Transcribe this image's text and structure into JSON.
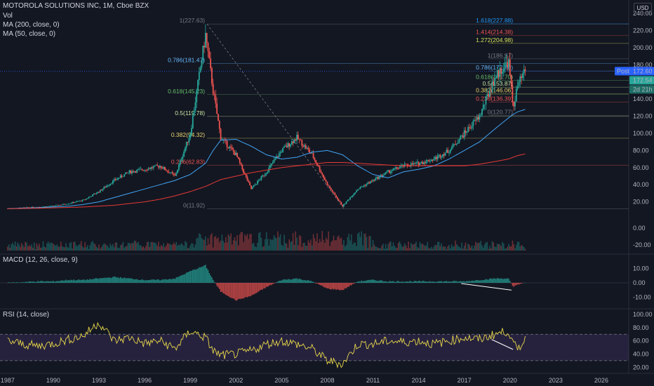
{
  "header": {
    "symbol": "MOTOROLA SOLUTIONS INC, 1M, Cboe BZX",
    "vol": "Vol",
    "ma200": "MA (200, close, 0)",
    "ma50": "MA (50, close, 0)",
    "currency": "USD"
  },
  "price_axis": {
    "ticks": [
      "240.00",
      "220.00",
      "200.00",
      "180.00",
      "160.00",
      "140.00",
      "120.00",
      "100.00",
      "80.00",
      "60.00",
      "40.00",
      "20.00"
    ],
    "volume_ticks": [
      "0.00",
      "-20.00"
    ],
    "macd_ticks": [
      "10.00",
      "0.00",
      "-10.00"
    ],
    "rsi_ticks": [
      "100.00",
      "80.00",
      "60.00",
      "40.00",
      "20.00"
    ]
  },
  "time_axis": [
    "1987",
    "1990",
    "1993",
    "1996",
    "1999",
    "2002",
    "2005",
    "2008",
    "2011",
    "2014",
    "2017",
    "2020",
    "2023",
    "2026"
  ],
  "price_tags": {
    "post_label": "Post",
    "post_value": "172.60",
    "last_value": "172.54",
    "countdown": "2d 21h",
    "colors": {
      "post": "#2962ff",
      "last": "#26a69a"
    }
  },
  "panes": {
    "macd_title": "MACD (12, 26, close, 9)",
    "rsi_title": "RSI (14, close)"
  },
  "fib_left": [
    {
      "label": "1(227.63)",
      "color": "#787b86"
    },
    {
      "label": "0.786(181.47)",
      "color": "#64b5f6"
    },
    {
      "label": "0.618(145.23)",
      "color": "#66bb6a"
    },
    {
      "label": "0.5(119.78)",
      "color": "#c8e6a0"
    },
    {
      "label": "0.382(94.32)",
      "color": "#e8d46a"
    },
    {
      "label": "0.236(62.83)",
      "color": "#ef5350"
    },
    {
      "label": "0(11.92)",
      "color": "#787b86"
    }
  ],
  "fib_right": [
    {
      "label": "1.618(227.88)",
      "color": "#2196f3"
    },
    {
      "label": "1.414(214.38)",
      "color": "#ef5350"
    },
    {
      "label": "1.272(204.98)",
      "color": "#d4e157"
    },
    {
      "label": "1(186.97)",
      "color": "#787b86"
    },
    {
      "label": "0.786(172.80)",
      "color": "#64b5f6"
    },
    {
      "label": "0.618(161.70)",
      "color": "#66bb6a"
    },
    {
      "label": "0.5(153.87)",
      "color": "#c8e6a0"
    },
    {
      "label": "0.382(146.06)",
      "color": "#e8d46a"
    },
    {
      "label": "0.236(136.39)",
      "color": "#ef5350"
    },
    {
      "label": "0(120.77)",
      "color": "#787b86"
    }
  ],
  "chart_data": {
    "type": "line",
    "title": "MOTOROLA SOLUTIONS INC, 1M, Cboe BZX",
    "x": [
      1987,
      1988,
      1989,
      1990,
      1991,
      1992,
      1993,
      1994,
      1995,
      1996,
      1997,
      1998,
      1999,
      2000,
      2000.5,
      2001,
      2002,
      2003,
      2004,
      2005,
      2006,
      2007,
      2008,
      2009,
      2010,
      2011,
      2012,
      2013,
      2014,
      2015,
      2016,
      2017,
      2018,
      2019,
      2019.9,
      2020.2,
      2020.5,
      2021
    ],
    "series": [
      {
        "name": "price",
        "values": [
          12,
          13,
          14,
          15,
          18,
          22,
          32,
          45,
          55,
          58,
          62,
          50,
          100,
          215,
          150,
          95,
          75,
          35,
          55,
          80,
          95,
          75,
          40,
          15,
          35,
          45,
          55,
          62,
          65,
          70,
          80,
          100,
          120,
          165,
          185,
          130,
          155,
          172.6
        ]
      },
      {
        "name": "MA (50, close, 0)",
        "values": [
          12,
          12.5,
          13,
          14,
          15,
          17,
          20,
          25,
          30,
          35,
          40,
          45,
          52,
          65,
          80,
          92,
          93,
          85,
          75,
          70,
          72,
          78,
          80,
          75,
          62,
          52,
          48,
          55,
          58,
          62,
          70,
          80,
          90,
          105,
          118,
          122,
          125,
          128
        ]
      },
      {
        "name": "MA (200, close, 0)",
        "values": [
          12,
          12.2,
          12.5,
          13,
          13.5,
          14,
          15,
          16,
          18,
          20,
          23,
          27,
          32,
          38,
          42,
          46,
          50,
          54,
          57,
          60,
          62,
          64,
          66,
          66,
          65,
          64,
          63,
          62,
          62,
          62,
          62,
          62,
          64,
          67,
          70,
          72,
          74,
          76
        ]
      }
    ],
    "ylim": [
      0,
      245
    ],
    "xlim": [
      1986.5,
      2027.8
    ],
    "fib_retracement_1": {
      "from": 227.63,
      "to": 11.92,
      "levels": {
        "1": 227.63,
        "0.786": 181.47,
        "0.618": 145.23,
        "0.5": 119.78,
        "0.382": 94.32,
        "0.236": 62.83,
        "0": 11.92
      }
    },
    "fib_extension_2": {
      "levels": {
        "1.618": 227.88,
        "1.414": 214.38,
        "1.272": 204.98,
        "1": 186.97,
        "0.786": 172.8,
        "0.618": 161.7,
        "0.5": 153.87,
        "0.382": 146.06,
        "0.236": 136.39,
        "0": 120.77
      }
    },
    "macd": {
      "ylim": [
        -14,
        14
      ],
      "values": [
        0,
        0.5,
        1,
        1,
        2,
        2,
        3,
        4,
        3,
        2,
        2,
        3,
        8,
        12,
        2,
        -6,
        -12,
        -9,
        -3,
        2,
        3,
        1,
        -4,
        -5,
        1,
        2,
        1,
        1,
        1,
        1,
        1,
        1,
        2,
        3,
        3,
        -3,
        -1,
        0
      ]
    },
    "rsi": {
      "ylim": [
        15,
        100
      ],
      "upper": 70,
      "lower": 30,
      "values": [
        60,
        55,
        52,
        56,
        62,
        68,
        88,
        60,
        65,
        56,
        60,
        48,
        75,
        65,
        45,
        38,
        40,
        45,
        55,
        60,
        55,
        48,
        30,
        25,
        55,
        55,
        60,
        58,
        60,
        55,
        60,
        65,
        62,
        70,
        75,
        55,
        48,
        62
      ]
    }
  }
}
